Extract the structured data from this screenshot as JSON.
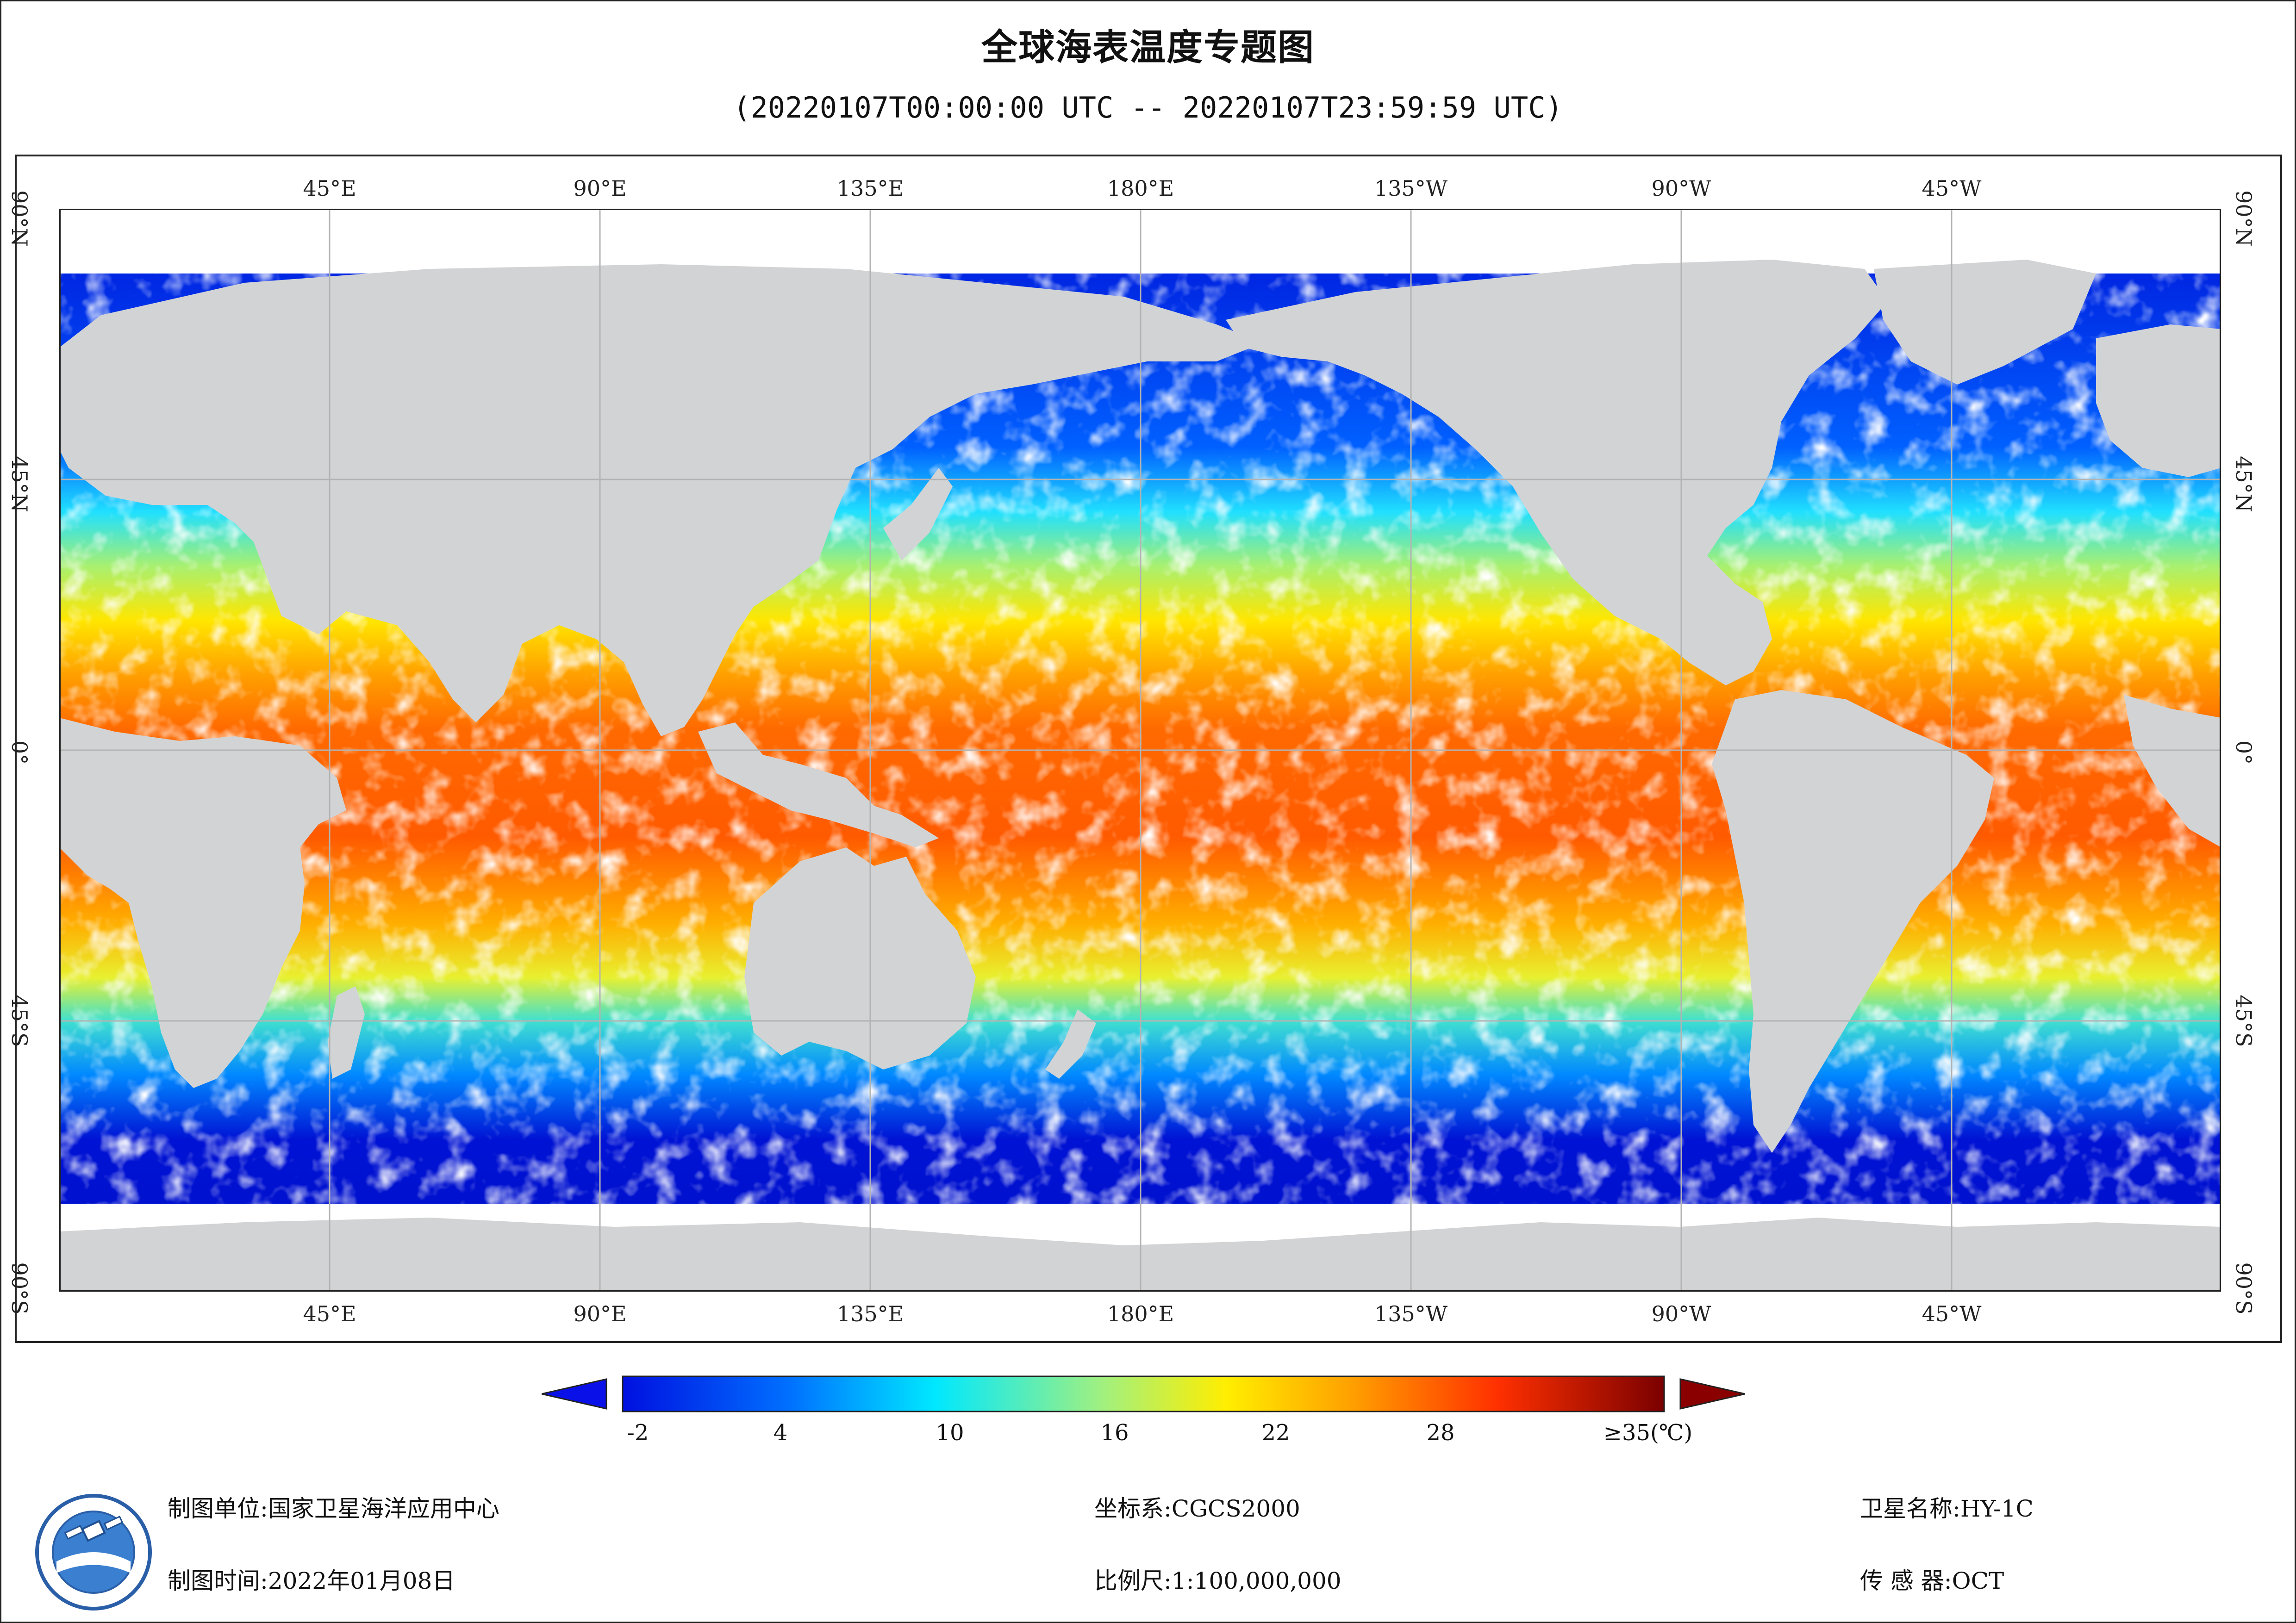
{
  "title": "全球海表温度专题图",
  "subtitle": "(20220107T00:00:00 UTC -- 20220107T23:59:59 UTC)",
  "longitude_ticks": [
    "45°E",
    "90°E",
    "135°E",
    "180°E",
    "135°W",
    "90°W",
    "45°W"
  ],
  "latitude_ticks": [
    "90°N",
    "45°N",
    "0°",
    "45°S",
    "90°S"
  ],
  "legend": {
    "labels": [
      "-2",
      "4",
      "10",
      "16",
      "22",
      "28",
      "≥35(℃)"
    ],
    "min": -2,
    "max": 35
  },
  "colors": {
    "land": "#d2d3d5",
    "cloud_gap": "#ffffff",
    "grid": "#b3b3b3",
    "frame": "#222222"
  },
  "footer": {
    "unit_label": "制图单位:",
    "unit_value": "国家卫星海洋应用中心",
    "time_label": "制图时间:",
    "time_value": "2022年01月08日",
    "crs_label": "坐标系:",
    "crs_value": "CGCS2000",
    "scale_label": "比例尺:",
    "scale_value": "1:100,000,000",
    "satellite_label": "卫星名称:",
    "satellite_value": "HY-1C",
    "sensor_label": "传 感 器:",
    "sensor_value": "OCT"
  }
}
